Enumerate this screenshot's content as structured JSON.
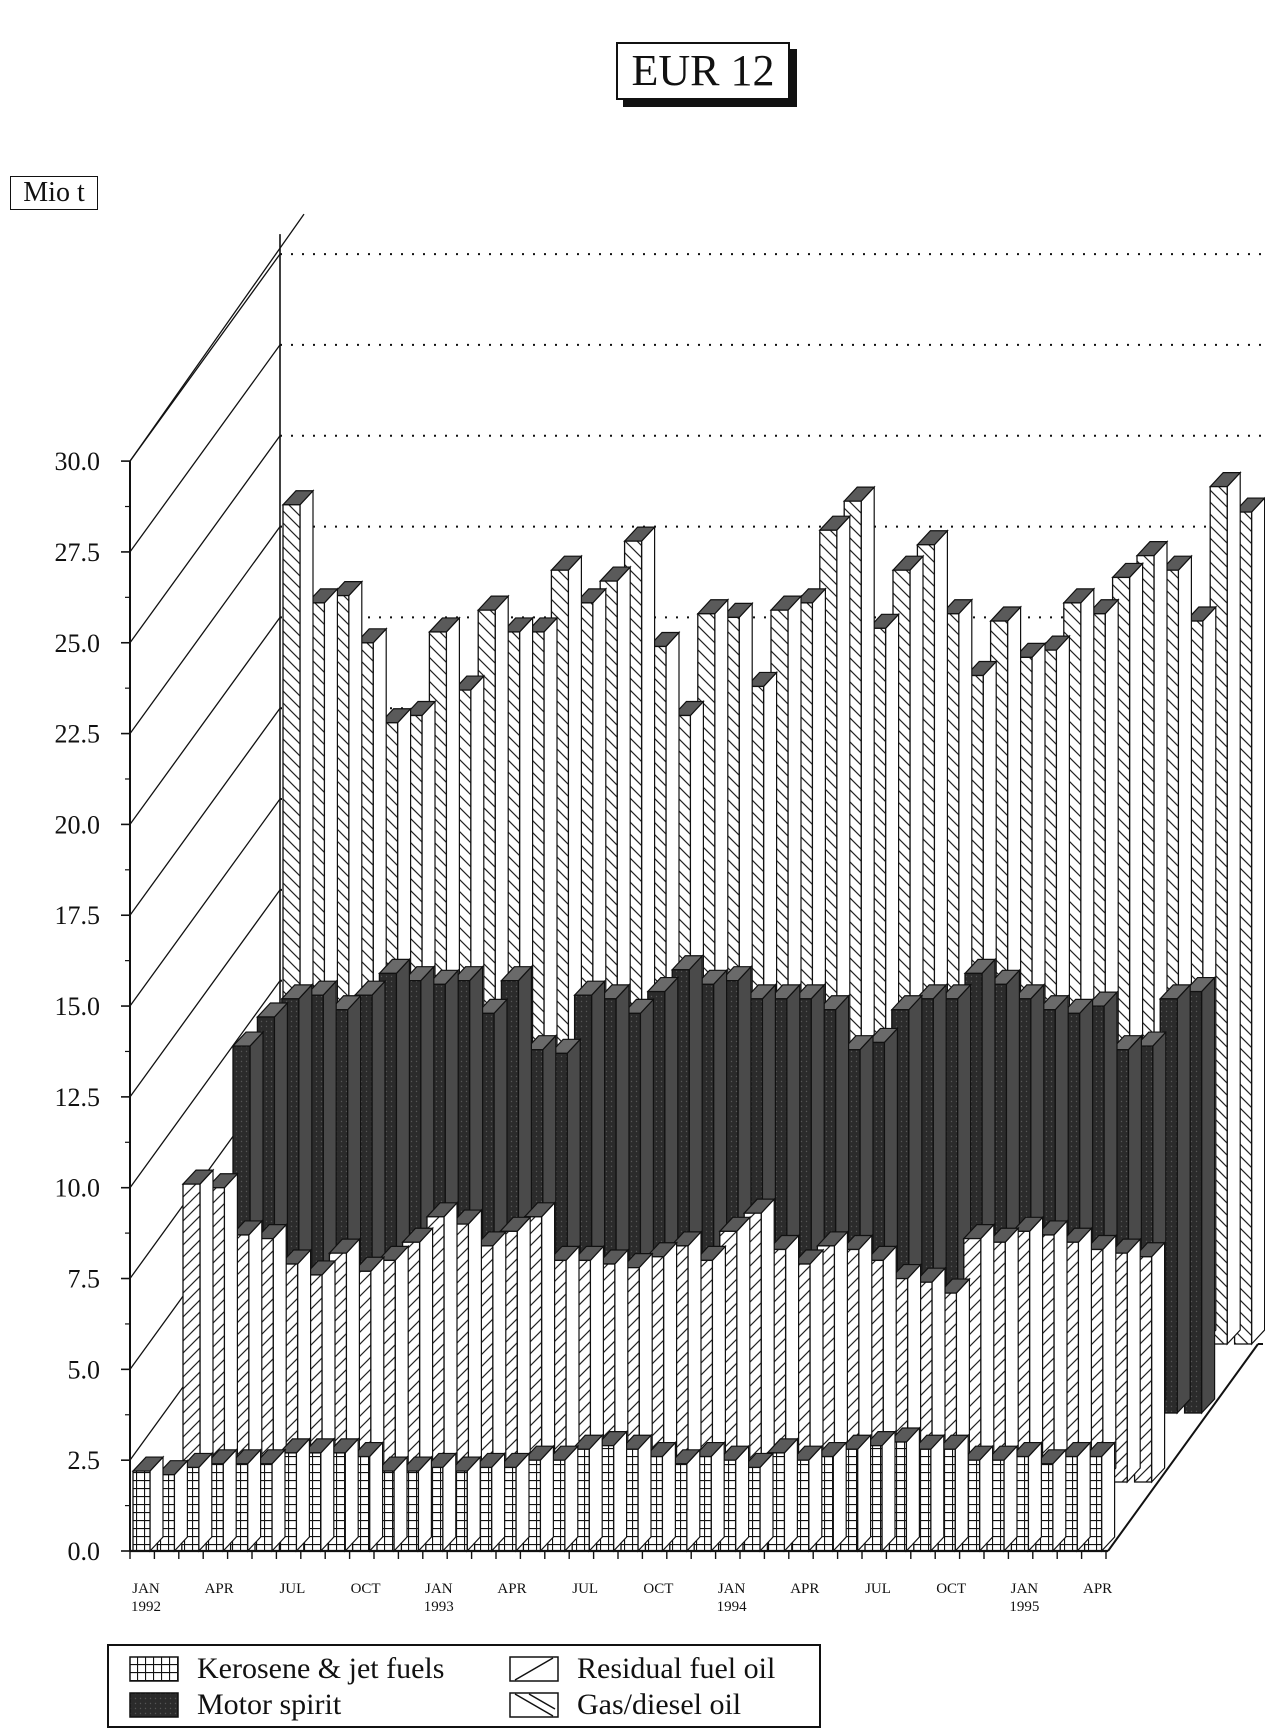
{
  "chart_data": {
    "type": "bar",
    "title": "EUR 12",
    "ylabel": "Mio t",
    "ylim": [
      0,
      30
    ],
    "yticks": [
      "0.0",
      "2.5",
      "5.0",
      "7.5",
      "10.0",
      "12.5",
      "15.0",
      "17.5",
      "20.0",
      "22.5",
      "25.0",
      "27.5",
      "30.0"
    ],
    "x_tick_labels": [
      {
        "index": 0,
        "label": "JAN",
        "year": "1992"
      },
      {
        "index": 3,
        "label": "APR"
      },
      {
        "index": 6,
        "label": "JUL"
      },
      {
        "index": 9,
        "label": "OCT"
      },
      {
        "index": 12,
        "label": "JAN",
        "year": "1993"
      },
      {
        "index": 15,
        "label": "APR"
      },
      {
        "index": 18,
        "label": "JUL"
      },
      {
        "index": 21,
        "label": "OCT"
      },
      {
        "index": 24,
        "label": "JAN",
        "year": "1994"
      },
      {
        "index": 27,
        "label": "APR"
      },
      {
        "index": 30,
        "label": "JUL"
      },
      {
        "index": 33,
        "label": "OCT"
      },
      {
        "index": 36,
        "label": "JAN",
        "year": "1995"
      },
      {
        "index": 39,
        "label": "APR"
      }
    ],
    "grid": true,
    "legend": "bottom",
    "series": [
      {
        "name": "Kerosene & jet fuels",
        "pattern": "grid",
        "values": [
          2.2,
          2.1,
          2.3,
          2.4,
          2.4,
          2.4,
          2.7,
          2.7,
          2.7,
          2.6,
          2.2,
          2.2,
          2.3,
          2.2,
          2.3,
          2.3,
          2.5,
          2.5,
          2.8,
          2.9,
          2.8,
          2.6,
          2.4,
          2.6,
          2.5,
          2.3,
          2.7,
          2.5,
          2.6,
          2.8,
          2.9,
          3.0,
          2.8,
          2.8,
          2.5,
          2.5,
          2.6,
          2.4,
          2.6,
          2.6
        ]
      },
      {
        "name": "Residual fuel oil",
        "pattern": "hatch-forward",
        "values": [
          8.2,
          8.1,
          6.8,
          6.7,
          6.0,
          5.7,
          6.3,
          5.8,
          6.1,
          6.6,
          7.3,
          7.1,
          6.5,
          6.9,
          7.3,
          6.1,
          6.1,
          6.0,
          5.9,
          6.2,
          6.5,
          6.1,
          6.9,
          7.4,
          6.4,
          6.0,
          6.5,
          6.4,
          6.1,
          5.6,
          5.5,
          5.2,
          6.7,
          6.6,
          6.9,
          6.8,
          6.6,
          6.4,
          6.3,
          6.2
        ]
      },
      {
        "name": "Motor spirit",
        "pattern": "dark",
        "values": [
          10.1,
          10.9,
          11.4,
          11.5,
          11.1,
          11.5,
          12.1,
          11.9,
          11.8,
          11.9,
          11.0,
          11.9,
          10.0,
          9.9,
          11.5,
          11.4,
          11.0,
          11.6,
          12.2,
          11.8,
          11.9,
          11.4,
          11.4,
          11.4,
          11.1,
          10.0,
          10.2,
          11.1,
          11.4,
          11.4,
          12.1,
          11.8,
          11.4,
          11.1,
          11.0,
          11.2,
          10.0,
          10.1,
          11.4,
          11.6
        ]
      },
      {
        "name": "Gas/diesel oil",
        "pattern": "hatch-back",
        "values": [
          23.1,
          20.4,
          20.6,
          19.3,
          17.1,
          17.3,
          19.6,
          18.0,
          20.2,
          19.6,
          19.6,
          21.3,
          20.4,
          21.0,
          22.1,
          19.2,
          17.3,
          20.1,
          20.0,
          18.1,
          20.2,
          20.4,
          22.4,
          23.2,
          19.7,
          21.3,
          22.0,
          20.1,
          18.4,
          19.9,
          18.9,
          19.1,
          20.4,
          20.1,
          21.1,
          21.7,
          21.3,
          19.9,
          23.6,
          22.9
        ]
      }
    ]
  },
  "legend": {
    "items": [
      {
        "name": "Kerosene & jet fuels",
        "pattern": "grid"
      },
      {
        "name": "Motor spirit",
        "pattern": "dark"
      },
      {
        "name": "Residual fuel oil",
        "pattern": "hatch-forward"
      },
      {
        "name": "Gas/diesel oil",
        "pattern": "hatch-back"
      }
    ]
  },
  "colors": {
    "dark_fill": "#2b2b2b",
    "dark_side": "#4a4a4a",
    "dark_top": "#6a6a6a",
    "light_top": "#5a5a5a",
    "ink": "#111111"
  }
}
